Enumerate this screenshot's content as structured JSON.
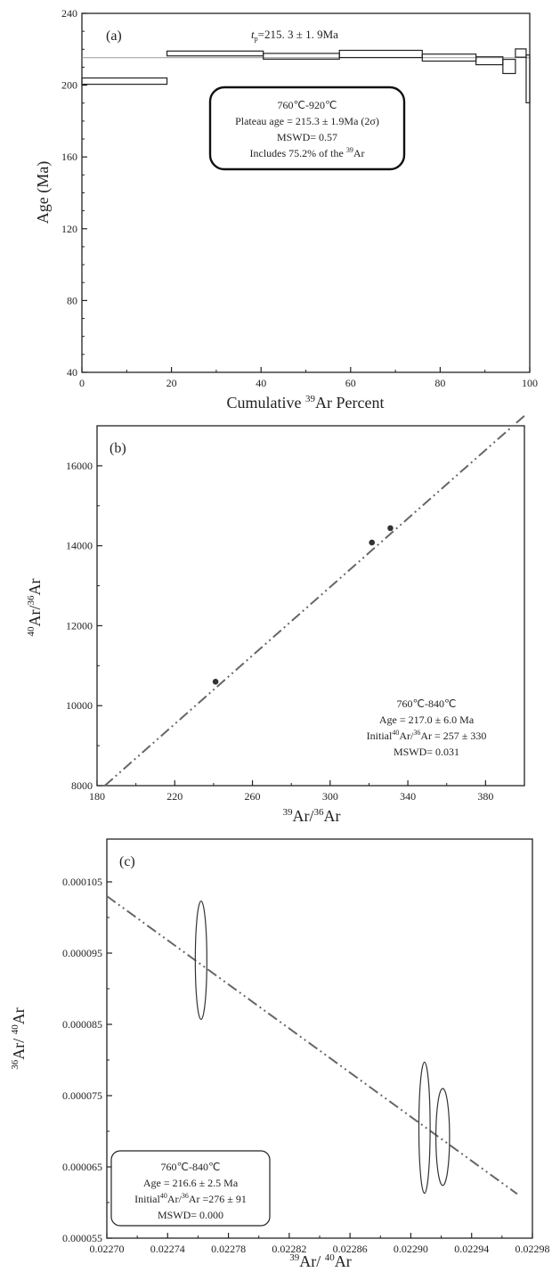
{
  "chart_data": [
    {
      "type": "step",
      "panel_label": "(a)",
      "plateau_label_prefix": "t",
      "plateau_label_sub": "p",
      "plateau_label_value": "=215. 3 ± 1. 9Ma",
      "xlabel_prefix": "Cumulative ",
      "xlabel_sup": "39",
      "xlabel_suffix": "Ar Percent",
      "ylabel": "Age (Ma)",
      "xlim": [
        0,
        100
      ],
      "ylim": [
        40,
        240
      ],
      "xticks": [
        "0",
        "20",
        "40",
        "60",
        "80",
        "100"
      ],
      "yticks": [
        "40",
        "80",
        "120",
        "160",
        "200",
        "240"
      ],
      "plateau_age": 215.3,
      "steps": [
        {
          "x0": 0,
          "x1": 19,
          "low": 200.5,
          "high": 204
        },
        {
          "x0": 19,
          "x1": 40.5,
          "low": 216.3,
          "high": 219
        },
        {
          "x0": 40.5,
          "x1": 57.5,
          "low": 214.5,
          "high": 217.7
        },
        {
          "x0": 57.5,
          "x1": 76,
          "low": 215.4,
          "high": 219.4
        },
        {
          "x0": 76,
          "x1": 88,
          "low": 213.4,
          "high": 217.3
        },
        {
          "x0": 88,
          "x1": 94,
          "low": 211.4,
          "high": 215.8
        },
        {
          "x0": 94,
          "x1": 96.8,
          "low": 206.5,
          "high": 214.4
        },
        {
          "x0": 96.8,
          "x1": 99.2,
          "low": 215.6,
          "high": 220.2
        },
        {
          "x0": 99.2,
          "x1": 100,
          "low": 190.2,
          "high": 216.8
        }
      ],
      "annotation": {
        "line1": "760℃-920℃",
        "line2": "Plateau age = 215.3 ± 1.9Ma (2σ)",
        "line3": "MSWD= 0.57",
        "line4_prefix": "Includes 75.2% of the ",
        "line4_sup": "39",
        "line4_suffix": "Ar"
      }
    },
    {
      "type": "scatter",
      "panel_label": "(b)",
      "xlabel_sup1": "39",
      "xlabel_mid": "Ar/",
      "xlabel_sup2": "36",
      "xlabel_end": "Ar",
      "ylabel_sup1": "40",
      "ylabel_mid": "Ar/",
      "ylabel_sup2": "36",
      "ylabel_end": "Ar",
      "xlim": [
        180,
        400
      ],
      "ylim": [
        8000,
        17000
      ],
      "xticks": [
        "180",
        "220",
        "260",
        "300",
        "340",
        "380"
      ],
      "yticks": [
        "8000",
        "10000",
        "12000",
        "14000",
        "16000"
      ],
      "points": [
        {
          "x": 241,
          "y": 10600
        },
        {
          "x": 321.5,
          "y": 14080
        },
        {
          "x": 331,
          "y": 14440
        }
      ],
      "fit_line": [
        {
          "x": 184,
          "y": 8000
        },
        {
          "x": 400,
          "y": 17250
        }
      ],
      "annotation": {
        "line1": "760℃-840℃",
        "line2": "Age = 217.0 ± 6.0 Ma",
        "line3_prefix": "Initial",
        "line3_sup1": "40",
        "line3_mid": "Ar/",
        "line3_sup2": "36",
        "line3_suffix": "Ar = 257 ± 330",
        "line4": "MSWD= 0.031"
      }
    },
    {
      "type": "scatter",
      "panel_label": "(c)",
      "xlabel_sup1": "39",
      "xlabel_mid": "Ar/ ",
      "xlabel_sup2": "40",
      "xlabel_end": "Ar",
      "ylabel_sup1": "36",
      "ylabel_mid": "Ar/ ",
      "ylabel_sup2": "40",
      "ylabel_end": "Ar",
      "xlim": [
        0.0227,
        0.02298
      ],
      "ylim": [
        5.5e-05,
        0.000111
      ],
      "xticks": [
        "0.02270",
        "0.02274",
        "0.02278",
        "0.02282",
        "0.02286",
        "0.02290",
        "0.02294",
        "0.02298"
      ],
      "yticks": [
        "0.000055",
        "0.000065",
        "0.000075",
        "0.000085",
        "0.000095",
        "0.000105"
      ],
      "ellipses": [
        {
          "x": 0.022762,
          "y": 9.4e-05,
          "x_err": 3.8e-06,
          "y_err": 8.3e-06
        },
        {
          "x": 0.022909,
          "y": 7.05e-05,
          "x_err": 3.7e-06,
          "y_err": 9.2e-06
        },
        {
          "x": 0.022921,
          "y": 6.92e-05,
          "x_err": 4.5e-06,
          "y_err": 6.8e-06
        }
      ],
      "fit_line": [
        {
          "x": 0.0227,
          "y": 0.000103
        },
        {
          "x": 0.02297,
          "y": 6.12e-05
        }
      ],
      "annotation": {
        "line1": "760℃-840℃",
        "line2": "Age = 216.6 ± 2.5 Ma",
        "line3_prefix": "Initial",
        "line3_sup1": "40",
        "line3_mid": "Ar/",
        "line3_sup2": "36",
        "line3_suffix": "Ar =276 ± 91",
        "line4": "MSWD= 0.000"
      }
    }
  ]
}
